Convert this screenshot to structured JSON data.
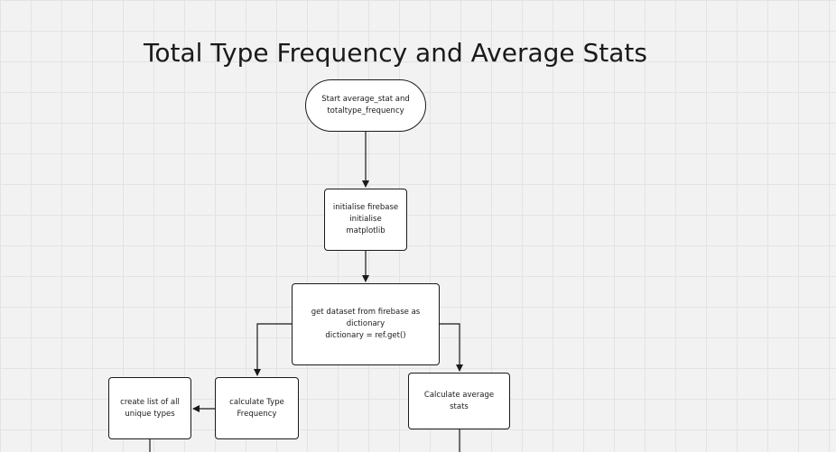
{
  "diagram": {
    "title": "Total Type Frequency and Average Stats",
    "nodes": {
      "start": {
        "lines": [
          "Start average_stat and",
          "totaltype_frequency"
        ]
      },
      "init": {
        "lines": [
          "initialise firebase",
          "initialise matplotlib"
        ]
      },
      "get_dataset": {
        "lines": [
          "get dataset from firebase as dictionary",
          "dictionary = ref.get()"
        ]
      },
      "calc_type_freq": {
        "lines": [
          "calculate Type",
          "Frequency"
        ]
      },
      "unique_types": {
        "lines": [
          "create list of all",
          "unique types"
        ]
      },
      "avg_stats": {
        "lines": [
          "Calculate average stats"
        ]
      }
    },
    "edges": [
      {
        "from": "start",
        "to": "init"
      },
      {
        "from": "init",
        "to": "get_dataset"
      },
      {
        "from": "get_dataset",
        "to": "calc_type_freq"
      },
      {
        "from": "get_dataset",
        "to": "avg_stats"
      },
      {
        "from": "calc_type_freq",
        "to": "unique_types"
      }
    ],
    "colors": {
      "line": "#1a1a1a",
      "node_fill": "#ffffff",
      "background": "#f2f2f2",
      "grid": "#e3e3e3"
    }
  }
}
